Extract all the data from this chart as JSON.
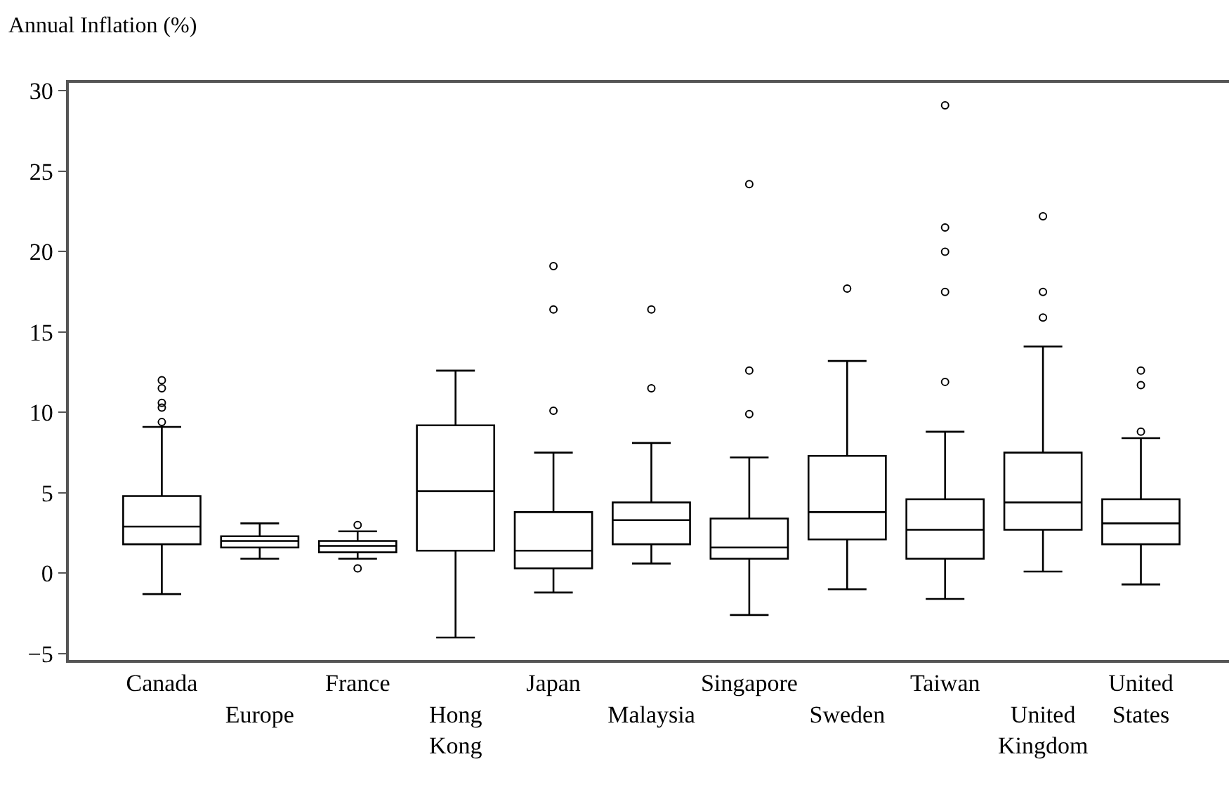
{
  "chart_data": {
    "type": "box",
    "ylabel": "Annual Inflation (%)",
    "categories": [
      "Canada",
      "Europe",
      "France",
      "Hong Kong",
      "Japan",
      "Malaysia",
      "Singapore",
      "Sweden",
      "Taiwan",
      "United Kingdom",
      "United States"
    ],
    "boxes": [
      {
        "low": -1.3,
        "q1": 1.8,
        "median": 2.9,
        "q3": 4.8,
        "high": 9.1,
        "outliers": [
          9.4,
          10.3,
          10.6,
          11.5,
          12.0
        ]
      },
      {
        "low": 0.9,
        "q1": 1.6,
        "median": 2.0,
        "q3": 2.3,
        "high": 3.1
      },
      {
        "low": 0.9,
        "q1": 1.3,
        "median": 1.7,
        "q3": 2.0,
        "high": 2.6,
        "outliers": [
          0.3,
          3.0
        ]
      },
      {
        "low": -4.0,
        "q1": 1.4,
        "median": 5.1,
        "q3": 9.2,
        "high": 12.6
      },
      {
        "low": -1.2,
        "q1": 0.3,
        "median": 1.4,
        "q3": 3.8,
        "high": 7.5,
        "outliers": [
          10.1,
          16.4,
          19.1
        ]
      },
      {
        "low": 0.6,
        "q1": 1.8,
        "median": 3.3,
        "q3": 4.4,
        "high": 8.1,
        "outliers": [
          11.5,
          16.4
        ]
      },
      {
        "low": -2.6,
        "q1": 0.9,
        "median": 1.6,
        "q3": 3.4,
        "high": 7.2,
        "outliers": [
          9.9,
          12.6,
          24.2
        ]
      },
      {
        "low": -1.0,
        "q1": 2.1,
        "median": 3.8,
        "q3": 7.3,
        "high": 13.2,
        "outliers": [
          17.7
        ]
      },
      {
        "low": -1.6,
        "q1": 0.9,
        "median": 2.7,
        "q3": 4.6,
        "high": 8.8,
        "outliers": [
          11.9,
          17.5,
          20.0,
          21.5,
          29.1
        ]
      },
      {
        "low": 0.1,
        "q1": 2.7,
        "median": 4.4,
        "q3": 7.5,
        "high": 14.1,
        "outliers": [
          15.9,
          17.5,
          22.2
        ]
      },
      {
        "low": -0.7,
        "q1": 1.8,
        "median": 3.1,
        "q3": 4.6,
        "high": 8.4,
        "outliers": [
          8.8,
          11.7,
          12.6
        ]
      }
    ],
    "ylim": [
      -5.4,
      30.5
    ],
    "yticks": [
      {
        "value": -5,
        "label": "−5"
      },
      0,
      5,
      10,
      15,
      20,
      25,
      30
    ],
    "grid": false,
    "marker": "circle"
  }
}
